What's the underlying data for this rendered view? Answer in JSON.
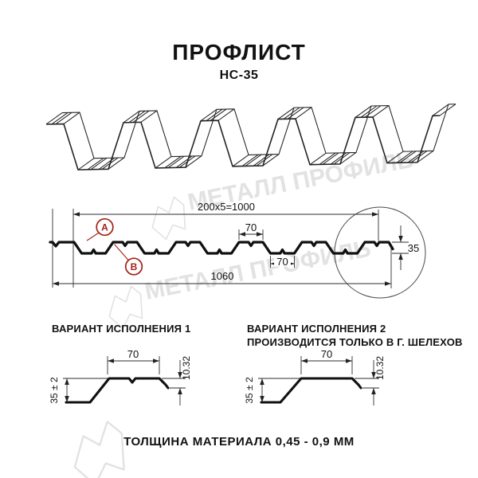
{
  "header": {
    "title": "ПРОФЛИСТ",
    "subtitle": "НС-35"
  },
  "watermark": {
    "text": "МЕТАЛЛ ПРОФИЛЬ"
  },
  "profile": {
    "dim_top": "200x5=1000",
    "dim_rib_top": "70",
    "dim_rib_bottom": "70",
    "dim_total": "1060",
    "dim_height": "35",
    "label_a": "А",
    "label_b": "В"
  },
  "variants": {
    "v1": {
      "title": "ВАРИАНТ ИСПОЛНЕНИЯ 1",
      "dim_width": "70",
      "dim_lip": "10.32",
      "dim_height": "35 ± 2"
    },
    "v2": {
      "title1": "ВАРИАНТ ИСПОЛНЕНИЯ 2",
      "title2": "ПРОИЗВОДИТСЯ ТОЛЬКО В Г. ШЕЛЕХОВ",
      "dim_width": "70",
      "dim_lip": "10.32",
      "dim_height": "35 ± 2"
    }
  },
  "footer": {
    "text": "ТОЛЩИНА МАТЕРИАЛА 0,45 - 0,9 ММ"
  },
  "colors": {
    "red": "#a32016",
    "wm": "#e2e2e2",
    "line": "#1c1c1c"
  }
}
